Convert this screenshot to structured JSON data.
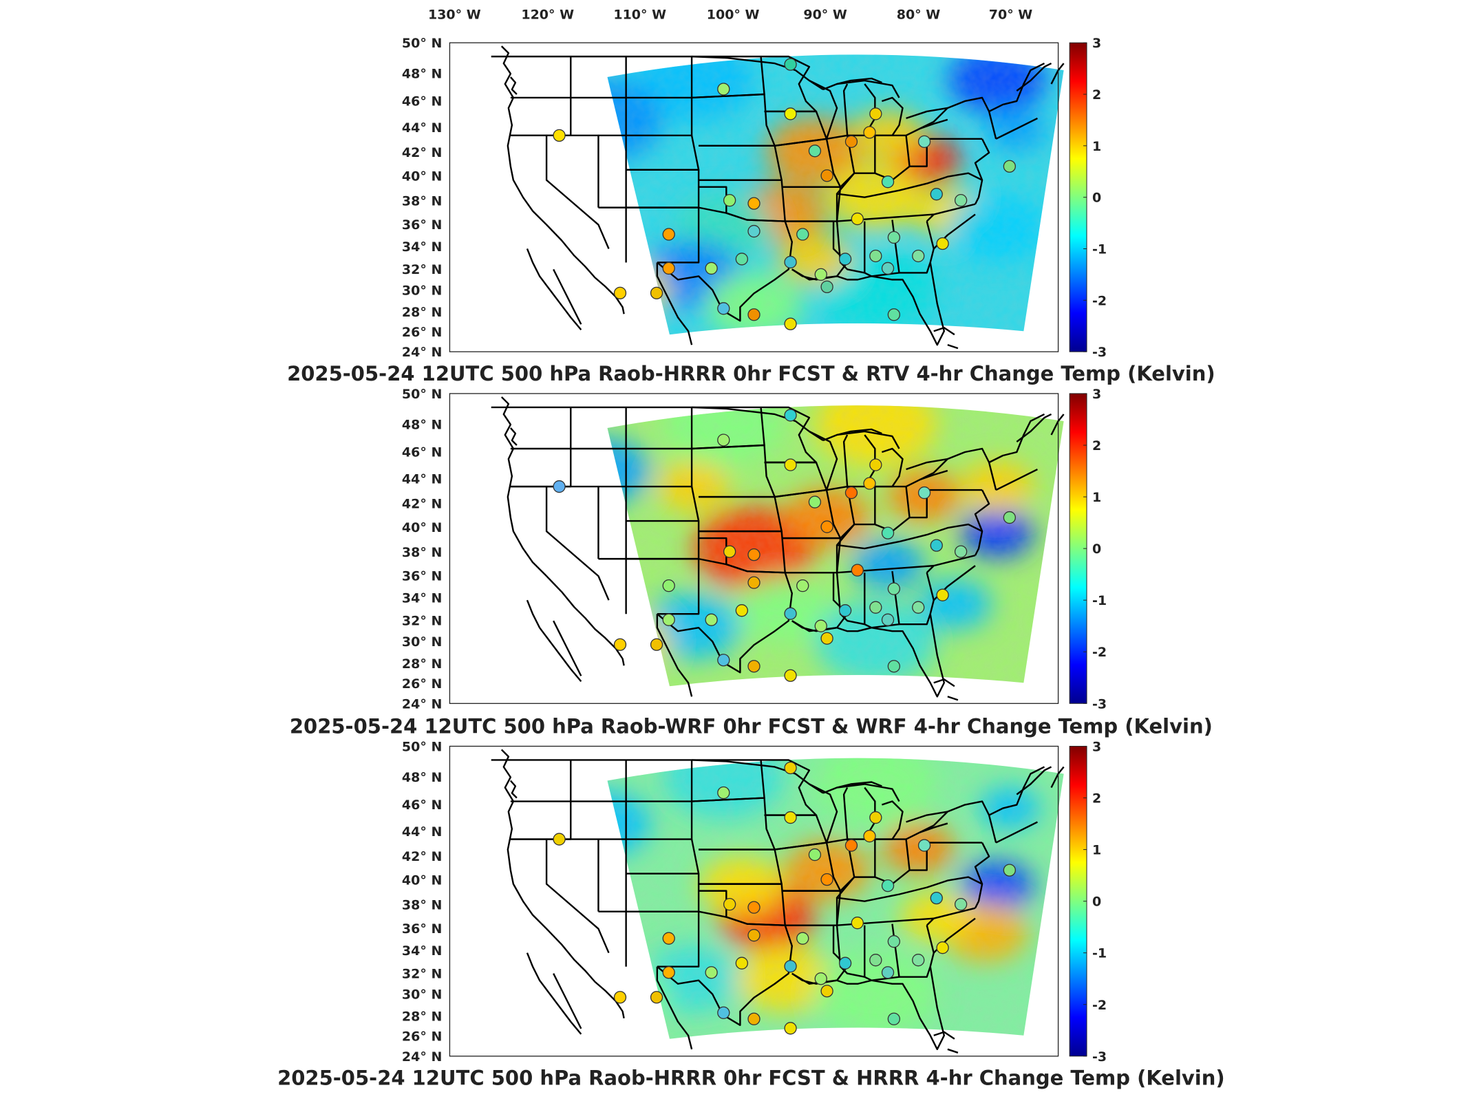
{
  "lon_labels": [
    "130",
    "120",
    "110",
    "100",
    "90",
    "80",
    "70"
  ],
  "lon_suffix": "W",
  "lat_labels": [
    "50",
    "48",
    "46",
    "44",
    "42",
    "40",
    "38",
    "36",
    "34",
    "32",
    "30",
    "28",
    "26",
    "24"
  ],
  "lat_suffix": "N",
  "degree_symbol": "°",
  "colorbar_ticks": [
    "3",
    "2",
    "1",
    "0",
    "-1",
    "-2",
    "-3"
  ],
  "panels": [
    {
      "title": "2025-05-24 12UTC 500 hPa Raob-HRRR 0hr FCST & RTV 4-hr Change Temp (Kelvin)"
    },
    {
      "title": "2025-05-24 12UTC 500 hPa Raob-WRF 0hr FCST & WRF 4-hr Change Temp (Kelvin)"
    },
    {
      "title": "2025-05-24 12UTC 500 hPa Raob-HRRR 0hr FCST & HRRR 4-hr Change Temp (Kelvin)"
    }
  ],
  "colormap": [
    "#00008f",
    "#0000ff",
    "#0080ff",
    "#00ffff",
    "#80ff80",
    "#ffff00",
    "#ff8000",
    "#ff0000",
    "#800000"
  ],
  "colorbar_range": [
    -3,
    3
  ]
}
